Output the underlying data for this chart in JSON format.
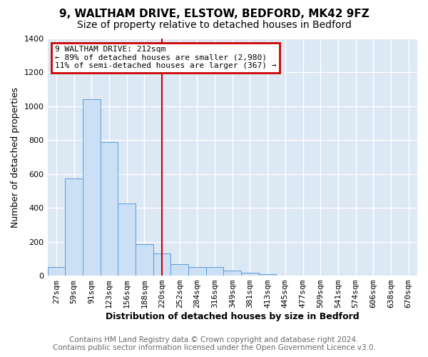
{
  "title": "9, WALTHAM DRIVE, ELSTOW, BEDFORD, MK42 9FZ",
  "subtitle": "Size of property relative to detached houses in Bedford",
  "xlabel": "Distribution of detached houses by size in Bedford",
  "ylabel": "Number of detached properties",
  "categories": [
    "27sqm",
    "59sqm",
    "91sqm",
    "123sqm",
    "156sqm",
    "188sqm",
    "220sqm",
    "252sqm",
    "284sqm",
    "316sqm",
    "349sqm",
    "381sqm",
    "413sqm",
    "445sqm",
    "477sqm",
    "509sqm",
    "541sqm",
    "574sqm",
    "606sqm",
    "638sqm",
    "670sqm"
  ],
  "values": [
    50,
    575,
    1040,
    790,
    425,
    185,
    130,
    68,
    52,
    50,
    28,
    18,
    7,
    0,
    0,
    0,
    0,
    0,
    0,
    0,
    0
  ],
  "bar_color": "#cce0f5",
  "bar_edge_color": "#5b9bd5",
  "vline_x": 6,
  "vline_color": "#cc0000",
  "ylim": [
    0,
    1400
  ],
  "yticks": [
    0,
    200,
    400,
    600,
    800,
    1000,
    1200,
    1400
  ],
  "annotation_title": "9 WALTHAM DRIVE: 212sqm",
  "annotation_line1": "← 89% of detached houses are smaller (2,980)",
  "annotation_line2": "11% of semi-detached houses are larger (367) →",
  "annotation_box_color": "#ffffff",
  "annotation_box_edge": "#cc0000",
  "footer1": "Contains HM Land Registry data © Crown copyright and database right 2024.",
  "footer2": "Contains public sector information licensed under the Open Government Licence v3.0.",
  "fig_bg_color": "#ffffff",
  "plot_bg_color": "#dde8f5",
  "grid_color": "#ffffff",
  "title_fontsize": 11,
  "subtitle_fontsize": 10,
  "axis_label_fontsize": 9,
  "tick_fontsize": 8,
  "footer_fontsize": 7.5
}
